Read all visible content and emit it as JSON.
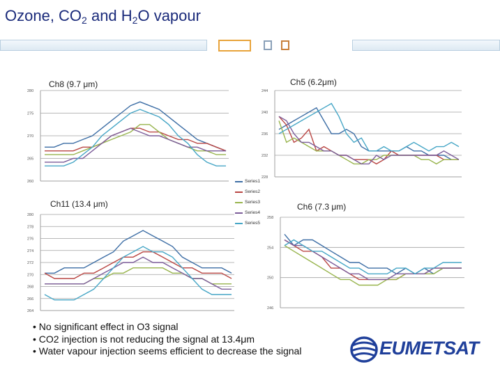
{
  "header": {
    "title_pre": "Ozone, CO",
    "title_sub1": "2",
    "title_mid": " and H",
    "title_sub2": "2",
    "title_post": "O vapour"
  },
  "colors": {
    "series": [
      "#3d6ea5",
      "#b94643",
      "#98b44d",
      "#7b5c99",
      "#46a6c6"
    ],
    "grid": "#a0a0a0",
    "title": "#1a2a7a",
    "accent": "#e8a33a",
    "logo": "#1f3f9a"
  },
  "legend": {
    "items": [
      "Series1",
      "Series2",
      "Series3",
      "Series4",
      "Series5"
    ]
  },
  "bullets": [
    "• No significant effect in O3 signal",
    "• CO2 injection is not reducing the signal at 13.4μm",
    "• Water vapour injection seems efficient to decrease the signal"
  ],
  "logo": {
    "text": "EUMETSAT",
    "icon": "eumetsat-globe-icon"
  },
  "chart_data": [
    {
      "type": "line",
      "title": "Ch8 (9.7 μm)",
      "yticks": [
        "280",
        "275",
        "270",
        "265",
        "260"
      ],
      "ylim": [
        258,
        282
      ],
      "series": [
        {
          "name": "Series1",
          "values": [
            267,
            267,
            268,
            268,
            269,
            270,
            272,
            274,
            276,
            278,
            279,
            278,
            277,
            275,
            273,
            271,
            269,
            268,
            267,
            266
          ]
        },
        {
          "name": "Series2",
          "values": [
            266,
            266,
            266,
            266,
            267,
            267,
            268,
            270,
            271,
            272,
            272,
            271,
            271,
            270,
            269,
            269,
            268,
            268,
            267,
            266
          ]
        },
        {
          "name": "Series3",
          "values": [
            265,
            265,
            265,
            265,
            266,
            267,
            268,
            269,
            270,
            271,
            273,
            273,
            271,
            269,
            268,
            267,
            266,
            266,
            265,
            265
          ]
        },
        {
          "name": "Series4",
          "values": [
            263,
            263,
            263,
            264,
            264,
            266,
            268,
            270,
            271,
            272,
            271,
            270,
            270,
            269,
            268,
            267,
            267,
            266,
            266,
            266
          ]
        },
        {
          "name": "Series5",
          "values": [
            262,
            262,
            262,
            263,
            265,
            267,
            270,
            272,
            274,
            276,
            277,
            276,
            275,
            273,
            270,
            268,
            265,
            263,
            262,
            262
          ]
        }
      ]
    },
    {
      "type": "line",
      "title": "Ch5 (6.2μm)",
      "yticks": [
        "244",
        "240",
        "236",
        "232",
        "228"
      ],
      "ylim": [
        226,
        246
      ],
      "series": [
        {
          "name": "Series1",
          "values": [
            237,
            238,
            239,
            240,
            241,
            242,
            239,
            236,
            236,
            237,
            236,
            233,
            232,
            232,
            232,
            232,
            232,
            233,
            232,
            232,
            231,
            231,
            231,
            230,
            230
          ]
        },
        {
          "name": "Series2",
          "values": [
            240,
            238,
            234,
            235,
            237,
            232,
            233,
            232,
            231,
            231,
            230,
            230,
            230,
            229,
            230,
            232,
            231,
            231,
            231,
            231,
            231,
            231,
            230,
            230,
            230
          ]
        },
        {
          "name": "Series3",
          "values": [
            239,
            234,
            235,
            234,
            233,
            232,
            232,
            232,
            231,
            230,
            229,
            229,
            230,
            230,
            231,
            231,
            231,
            231,
            231,
            230,
            230,
            229,
            230,
            230,
            230
          ]
        },
        {
          "name": "Series4",
          "values": [
            240,
            239,
            236,
            234,
            234,
            233,
            232,
            232,
            231,
            231,
            230,
            229,
            229,
            231,
            230,
            231,
            231,
            231,
            231,
            231,
            231,
            231,
            232,
            231,
            230
          ]
        },
        {
          "name": "Series5",
          "values": [
            236,
            237,
            238,
            239,
            240,
            241,
            242,
            243,
            240,
            236,
            234,
            235,
            232,
            232,
            233,
            232,
            232,
            233,
            234,
            233,
            232,
            233,
            233,
            234,
            233
          ]
        }
      ]
    },
    {
      "type": "line",
      "title": "Ch11 (13.4 μm)",
      "yticks": [
        "280",
        "278",
        "276",
        "274",
        "272",
        "270",
        "268",
        "266",
        "264"
      ],
      "ylim": [
        263,
        281
      ],
      "series": [
        {
          "name": "Series1",
          "values": [
            270,
            270,
            271,
            271,
            271,
            272,
            273,
            274,
            276,
            277,
            278,
            277,
            276,
            275,
            273,
            272,
            271,
            271,
            271,
            270
          ]
        },
        {
          "name": "Series2",
          "values": [
            270,
            269,
            269,
            269,
            270,
            270,
            271,
            272,
            273,
            273,
            274,
            274,
            273,
            272,
            271,
            271,
            270,
            270,
            270,
            269
          ]
        },
        {
          "name": "Series3",
          "values": [
            268,
            268,
            268,
            268,
            268,
            269,
            269,
            270,
            270,
            271,
            271,
            271,
            271,
            270,
            270,
            269,
            269,
            268,
            268,
            268
          ]
        },
        {
          "name": "Series4",
          "values": [
            268,
            268,
            268,
            268,
            268,
            269,
            270,
            271,
            272,
            272,
            273,
            272,
            272,
            271,
            270,
            269,
            269,
            268,
            267,
            267
          ]
        },
        {
          "name": "Series5",
          "values": [
            266,
            265,
            265,
            265,
            266,
            267,
            269,
            271,
            273,
            274,
            275,
            274,
            274,
            273,
            271,
            269,
            267,
            266,
            266,
            266
          ]
        }
      ]
    },
    {
      "type": "line",
      "title": "Ch6 (7.3 μm)",
      "yticks": [
        "258",
        "254",
        "250",
        "246"
      ],
      "ylim": [
        244,
        260
      ],
      "series": [
        {
          "name": "Series1",
          "values": [
            257,
            255,
            256,
            256,
            255,
            254,
            253,
            252,
            252,
            251,
            251,
            251,
            250,
            251,
            250,
            251,
            250,
            251,
            251,
            251
          ]
        },
        {
          "name": "Series2",
          "values": [
            256,
            255,
            254,
            254,
            253,
            251,
            251,
            250,
            249,
            249,
            249,
            249,
            249,
            250,
            250,
            250,
            251,
            251,
            251,
            251
          ]
        },
        {
          "name": "Series3",
          "values": [
            255,
            254,
            253,
            252,
            251,
            250,
            249,
            249,
            248,
            248,
            248,
            249,
            249,
            250,
            250,
            250,
            250,
            251,
            251,
            251
          ]
        },
        {
          "name": "Series4",
          "values": [
            256,
            255,
            255,
            254,
            253,
            252,
            251,
            250,
            250,
            249,
            249,
            249,
            250,
            250,
            250,
            250,
            251,
            251,
            251,
            251
          ]
        },
        {
          "name": "Series5",
          "values": [
            255,
            256,
            255,
            254,
            254,
            253,
            252,
            251,
            251,
            250,
            250,
            250,
            251,
            251,
            250,
            251,
            251,
            252,
            252,
            252
          ]
        }
      ]
    }
  ]
}
